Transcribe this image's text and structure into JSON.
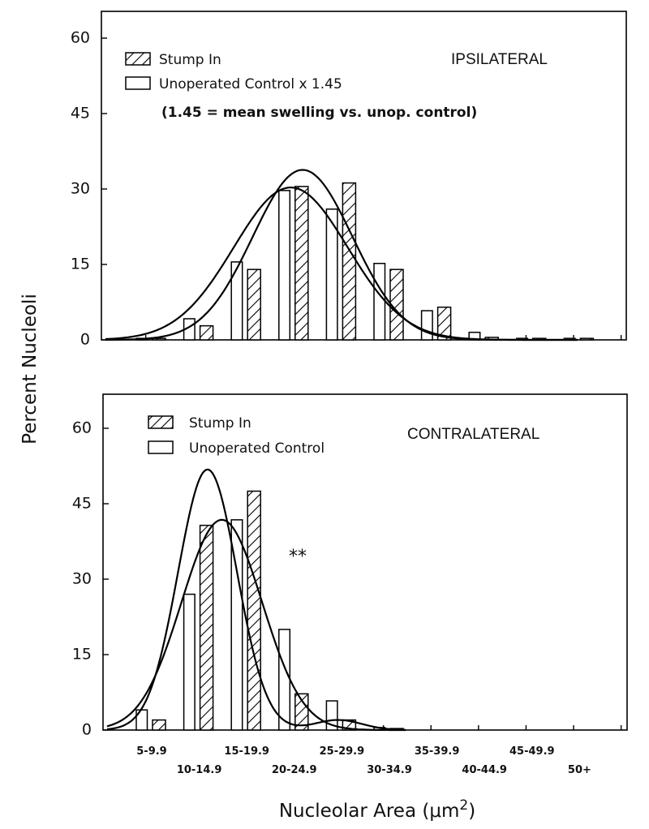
{
  "chart_data": {
    "type": "bar",
    "ylabel": "Percent Nucleoli",
    "xlabel": "Nucleolar Area (μm",
    "xlabel_superscript": "2",
    "xlabel_close": ")",
    "categories": [
      "5-9.9",
      "10-14.9",
      "15-19.9",
      "20-24.9",
      "25-29.9",
      "30-34.9",
      "35-39.9",
      "40-44.9",
      "45-49.9",
      "50+"
    ],
    "yticks": [
      "0",
      "15",
      "30",
      "45",
      "60"
    ],
    "ytick_values": [
      0,
      15,
      30,
      45,
      60
    ],
    "ylim": [
      0,
      65
    ],
    "grid": false,
    "panels": [
      {
        "name": "ipsilateral",
        "label": "IPSILATERAL",
        "legend": [
          "Stump In",
          "Unoperated Control x 1.45"
        ],
        "annotation": "(1.45 = mean swelling vs. unop. control)",
        "series": [
          {
            "name": "Unoperated Control x 1.45",
            "pattern": "open",
            "values": [
              0.3,
              4.2,
              15.5,
              29.7,
              26.0,
              15.2,
              5.8,
              1.5,
              0.3,
              0.3
            ]
          },
          {
            "name": "Stump In",
            "pattern": "hatched",
            "values": [
              0.3,
              2.8,
              14.0,
              30.5,
              31.2,
              14.0,
              6.5,
              0.5,
              0.3,
              0.3
            ]
          }
        ],
        "fit_curves": [
          {
            "name": "Stump In fit",
            "peak_value": 33.8,
            "peak_at_bin": 3.55,
            "sigma_bins": 1.05
          },
          {
            "name": "Control fit",
            "peak_value": 30.3,
            "peak_at_bin": 3.3,
            "sigma_bins": 1.2
          }
        ]
      },
      {
        "name": "contralateral",
        "label": "CONTRALATERAL",
        "legend": [
          "Stump In",
          "Unoperated Control"
        ],
        "annotation": "**",
        "series": [
          {
            "name": "Unoperated Control",
            "pattern": "open",
            "values": [
              4.0,
              27.0,
              41.8,
              20.0,
              5.8,
              0.5,
              0,
              0,
              0,
              0
            ]
          },
          {
            "name": "Stump In",
            "pattern": "hatched",
            "values": [
              2.0,
              40.7,
              47.5,
              7.2,
              2.0,
              0.3,
              0,
              0,
              0,
              0
            ]
          }
        ],
        "fit_curves": [
          {
            "name": "Stump In fit",
            "peak_value": 51.8,
            "peak_at_bin": 1.55,
            "sigma_bins": 0.62,
            "secondary_bump": {
              "value": 2.0,
              "at_bin": 4.3,
              "sigma_bins": 0.5
            }
          },
          {
            "name": "Control fit",
            "peak_value": 41.8,
            "peak_at_bin": 1.85,
            "sigma_bins": 0.85
          }
        ]
      }
    ]
  }
}
